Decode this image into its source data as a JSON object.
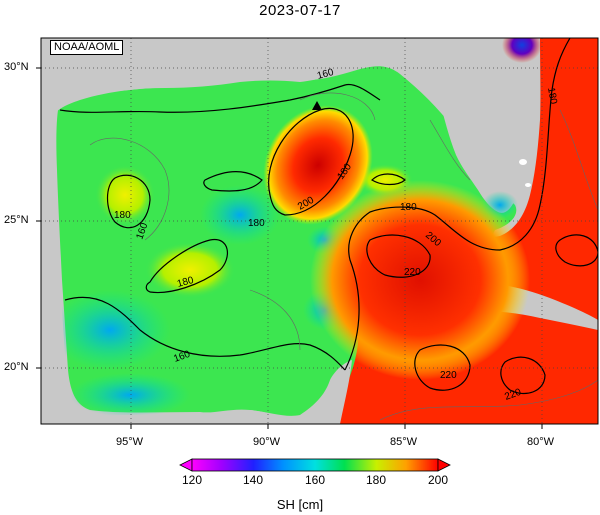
{
  "title": "2023-07-17",
  "watermark": "NOAA/AOML",
  "lat_labels": [
    "30°N",
    "25°N",
    "20°N"
  ],
  "lon_labels": [
    "95°W",
    "90°W",
    "85°W",
    "80°W"
  ],
  "contour_labels": [
    "160",
    "180",
    "160",
    "180",
    "180",
    "200",
    "180",
    "180",
    "200",
    "220",
    "220",
    "220",
    "160",
    "180"
  ],
  "colorbar": {
    "title": "SH [cm]",
    "ticks": [
      "120",
      "140",
      "160",
      "180",
      "200"
    ]
  },
  "colors": {
    "land": "#c8c8c8",
    "ocean_low": "#00c8f0",
    "ocean_mid": "#00e664",
    "ocean_high": "#ff1e00"
  }
}
